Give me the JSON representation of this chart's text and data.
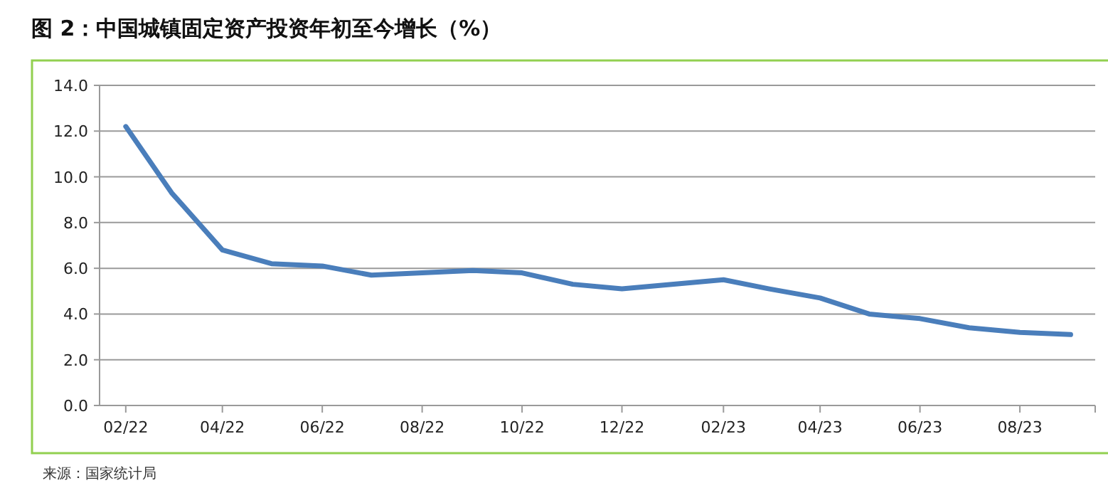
{
  "chart_data": {
    "type": "line",
    "title": "图 2：中国城镇固定资产投资年初至今增长（%）",
    "annotations": [
      "来源：国家统计局"
    ],
    "x": [
      "2022-02",
      "2022-03",
      "2022-04",
      "2022-05",
      "2022-06",
      "2022-07",
      "2022-08",
      "2022-09",
      "2022-10",
      "2022-11",
      "2022-12",
      "2023-02",
      "2023-03",
      "2023-04",
      "2023-05",
      "2023-06",
      "2023-07",
      "2023-08",
      "2023-09"
    ],
    "series": [
      {
        "color": "#4a7ebb",
        "values": [
          12.2,
          9.3,
          6.8,
          6.2,
          6.1,
          5.7,
          5.8,
          5.9,
          5.8,
          5.3,
          5.1,
          5.5,
          5.1,
          4.7,
          4.0,
          3.8,
          3.4,
          3.2,
          3.1
        ]
      }
    ],
    "xlim": [
      "2022-01-16",
      "2023-09-16"
    ],
    "xticks": [
      {
        "value": "2022-02",
        "label": "02/22"
      },
      {
        "value": "2022-04",
        "label": "04/22"
      },
      {
        "value": "2022-06",
        "label": "06/22"
      },
      {
        "value": "2022-08",
        "label": "08/22"
      },
      {
        "value": "2022-10",
        "label": "10/22"
      },
      {
        "value": "2022-12",
        "label": "12/22"
      },
      {
        "value": "2023-02",
        "label": "02/23"
      },
      {
        "value": "2023-04",
        "label": "04/23"
      },
      {
        "value": "2023-06",
        "label": "06/23"
      },
      {
        "value": "2023-08",
        "label": "08/23"
      }
    ],
    "ylim": [
      0,
      14
    ],
    "yticks": [
      {
        "value": 0,
        "label": "0.0"
      },
      {
        "value": 2,
        "label": "2.0"
      },
      {
        "value": 4,
        "label": "4.0"
      },
      {
        "value": 6,
        "label": "6.0"
      },
      {
        "value": 8,
        "label": "8.0"
      },
      {
        "value": 10,
        "label": "10.0"
      },
      {
        "value": 12,
        "label": "12.0"
      },
      {
        "value": 14,
        "label": "14.0"
      }
    ],
    "grid": "y",
    "marker": "none",
    "line_style": "solid"
  }
}
